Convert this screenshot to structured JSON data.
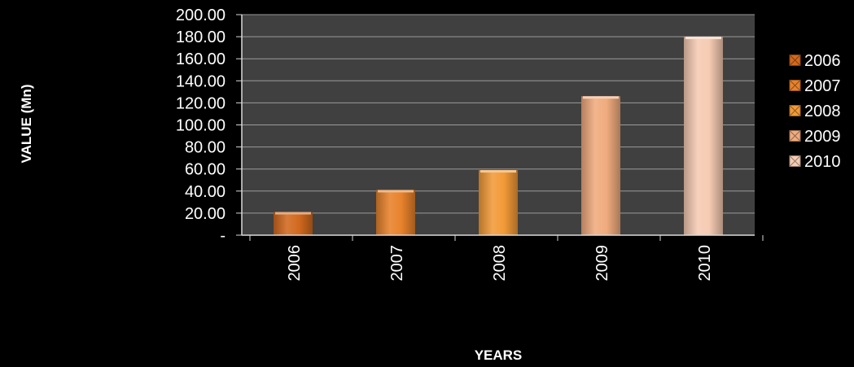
{
  "chart_data": {
    "type": "bar",
    "categories": [
      "2006",
      "2007",
      "2008",
      "2009",
      "2010"
    ],
    "values": [
      21,
      41,
      59,
      126,
      180
    ],
    "xlabel": "YEARS",
    "ylabel": "VALUE (Mn)",
    "ylim": [
      0,
      200
    ],
    "y_ticks": [
      0,
      20,
      40,
      60,
      80,
      100,
      120,
      140,
      160,
      180,
      200
    ],
    "y_tick_labels": [
      "-",
      "20.00",
      "40.00",
      "60.00",
      "80.00",
      "100.00",
      "120.00",
      "140.00",
      "160.00",
      "180.00",
      "200.00"
    ],
    "grid": true,
    "legend": {
      "placement": "right",
      "entries": [
        "2006",
        "2007",
        "2008",
        "2009",
        "2010"
      ]
    },
    "colors": {
      "page_background": "#000000",
      "plot_background": "#404040",
      "gridline": "#9a9a9a",
      "axis": "#d9d9d9",
      "text": "#ffffff",
      "bars": [
        "#d2691e",
        "#e8822b",
        "#f29a38",
        "#f0ab7e",
        "#f6cbb3"
      ]
    }
  }
}
